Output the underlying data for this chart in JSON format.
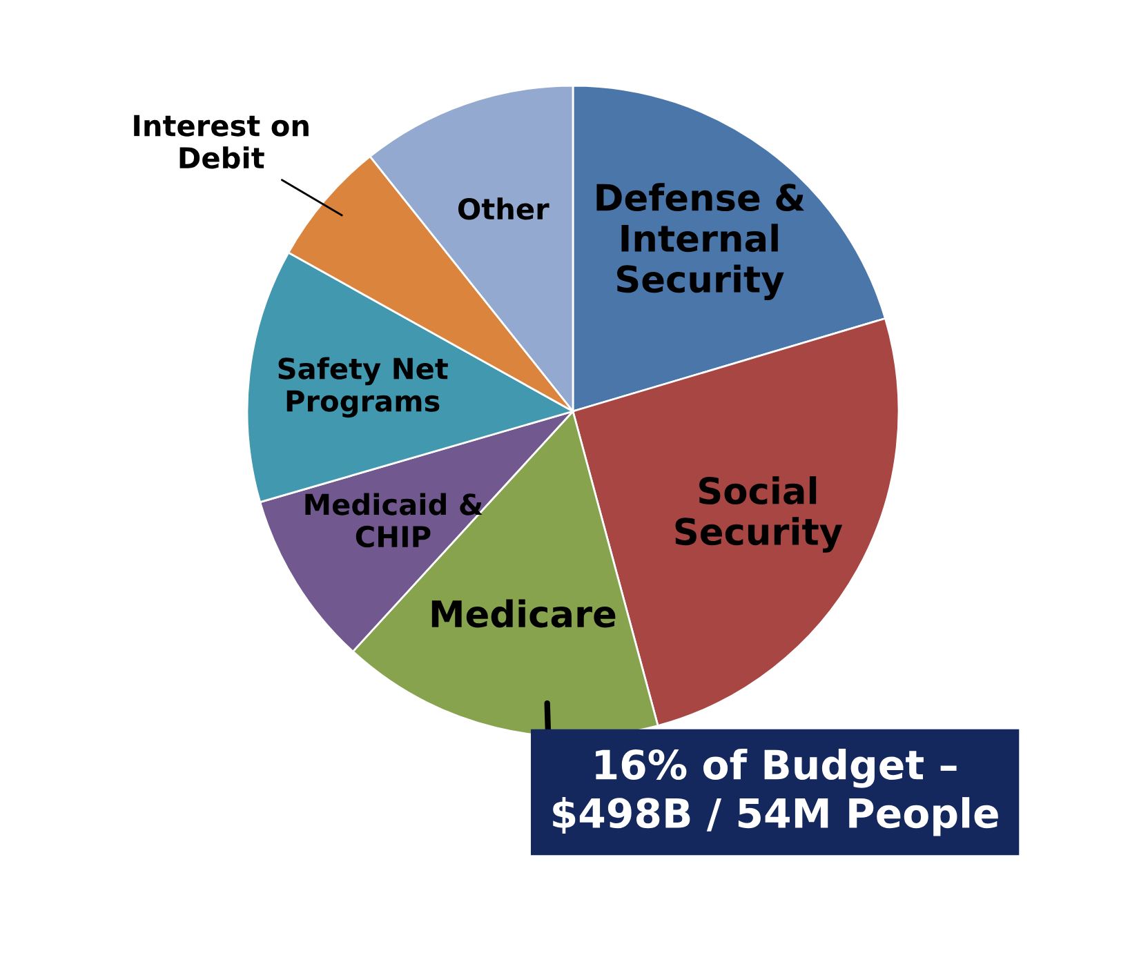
{
  "chart_data": {
    "type": "pie",
    "categories": [
      "Defense &\nInternal\nSecurity",
      "Social\nSecurity",
      "Medicare",
      "Medicaid &\nCHIP",
      "Safety Net\nPrograms",
      "Interest on\nDebit",
      "Other"
    ],
    "values": [
      20.4,
      25.4,
      16,
      8.7,
      12.6,
      6.2,
      10.7
    ],
    "colors": [
      "#4a76aa",
      "#a84644",
      "#88a34e",
      "#71588f",
      "#4198af",
      "#db843d",
      "#93a9cf"
    ],
    "annotations": [
      "16% of Budget –\n$498B / 54M People"
    ],
    "legend": false
  }
}
